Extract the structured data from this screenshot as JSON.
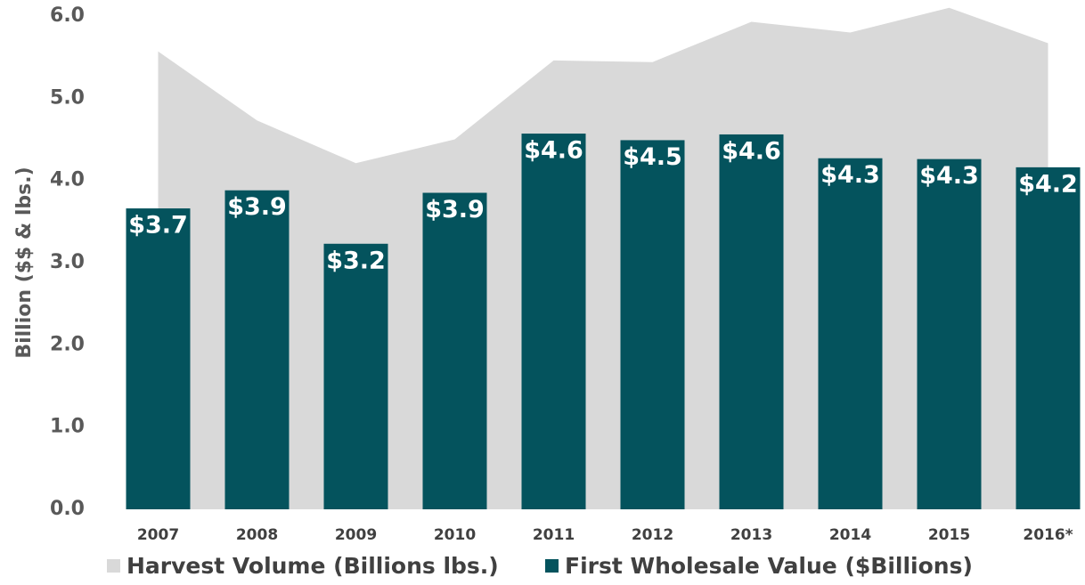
{
  "chart_data": {
    "type": "bar",
    "y_label": "Billion ($$ & lbs.)",
    "categories": [
      "2007",
      "2008",
      "2009",
      "2010",
      "2011",
      "2012",
      "2013",
      "2014",
      "2015",
      "2016*"
    ],
    "series": [
      {
        "name": "Harvest Volume (Billions lbs.)",
        "type": "area",
        "color": "#d9d9d9",
        "values": [
          5.57,
          4.73,
          4.21,
          4.5,
          5.46,
          5.44,
          5.93,
          5.8,
          6.1,
          5.67
        ]
      },
      {
        "name": "First Wholesale Value ($Billions)",
        "type": "bar",
        "color": "#04535d",
        "values": [
          3.66,
          3.88,
          3.23,
          3.85,
          4.57,
          4.49,
          4.56,
          4.27,
          4.26,
          4.16
        ],
        "value_labels": [
          "$3.7",
          "$3.9",
          "$3.2",
          "$3.9",
          "$4.6",
          "$4.5",
          "$4.6",
          "$4.3",
          "$4.3",
          "$4.2"
        ]
      }
    ],
    "ylim": [
      0,
      6
    ],
    "yticks": [
      {
        "value": 0,
        "label": "0.0"
      },
      {
        "value": 1,
        "label": "1.0"
      },
      {
        "value": 2,
        "label": "2.0"
      },
      {
        "value": 3,
        "label": "3.0"
      },
      {
        "value": 4,
        "label": "4.0"
      },
      {
        "value": 5,
        "label": "5.0"
      },
      {
        "value": 6,
        "label": "6.0"
      }
    ],
    "grid": false,
    "legend": "bottom"
  }
}
